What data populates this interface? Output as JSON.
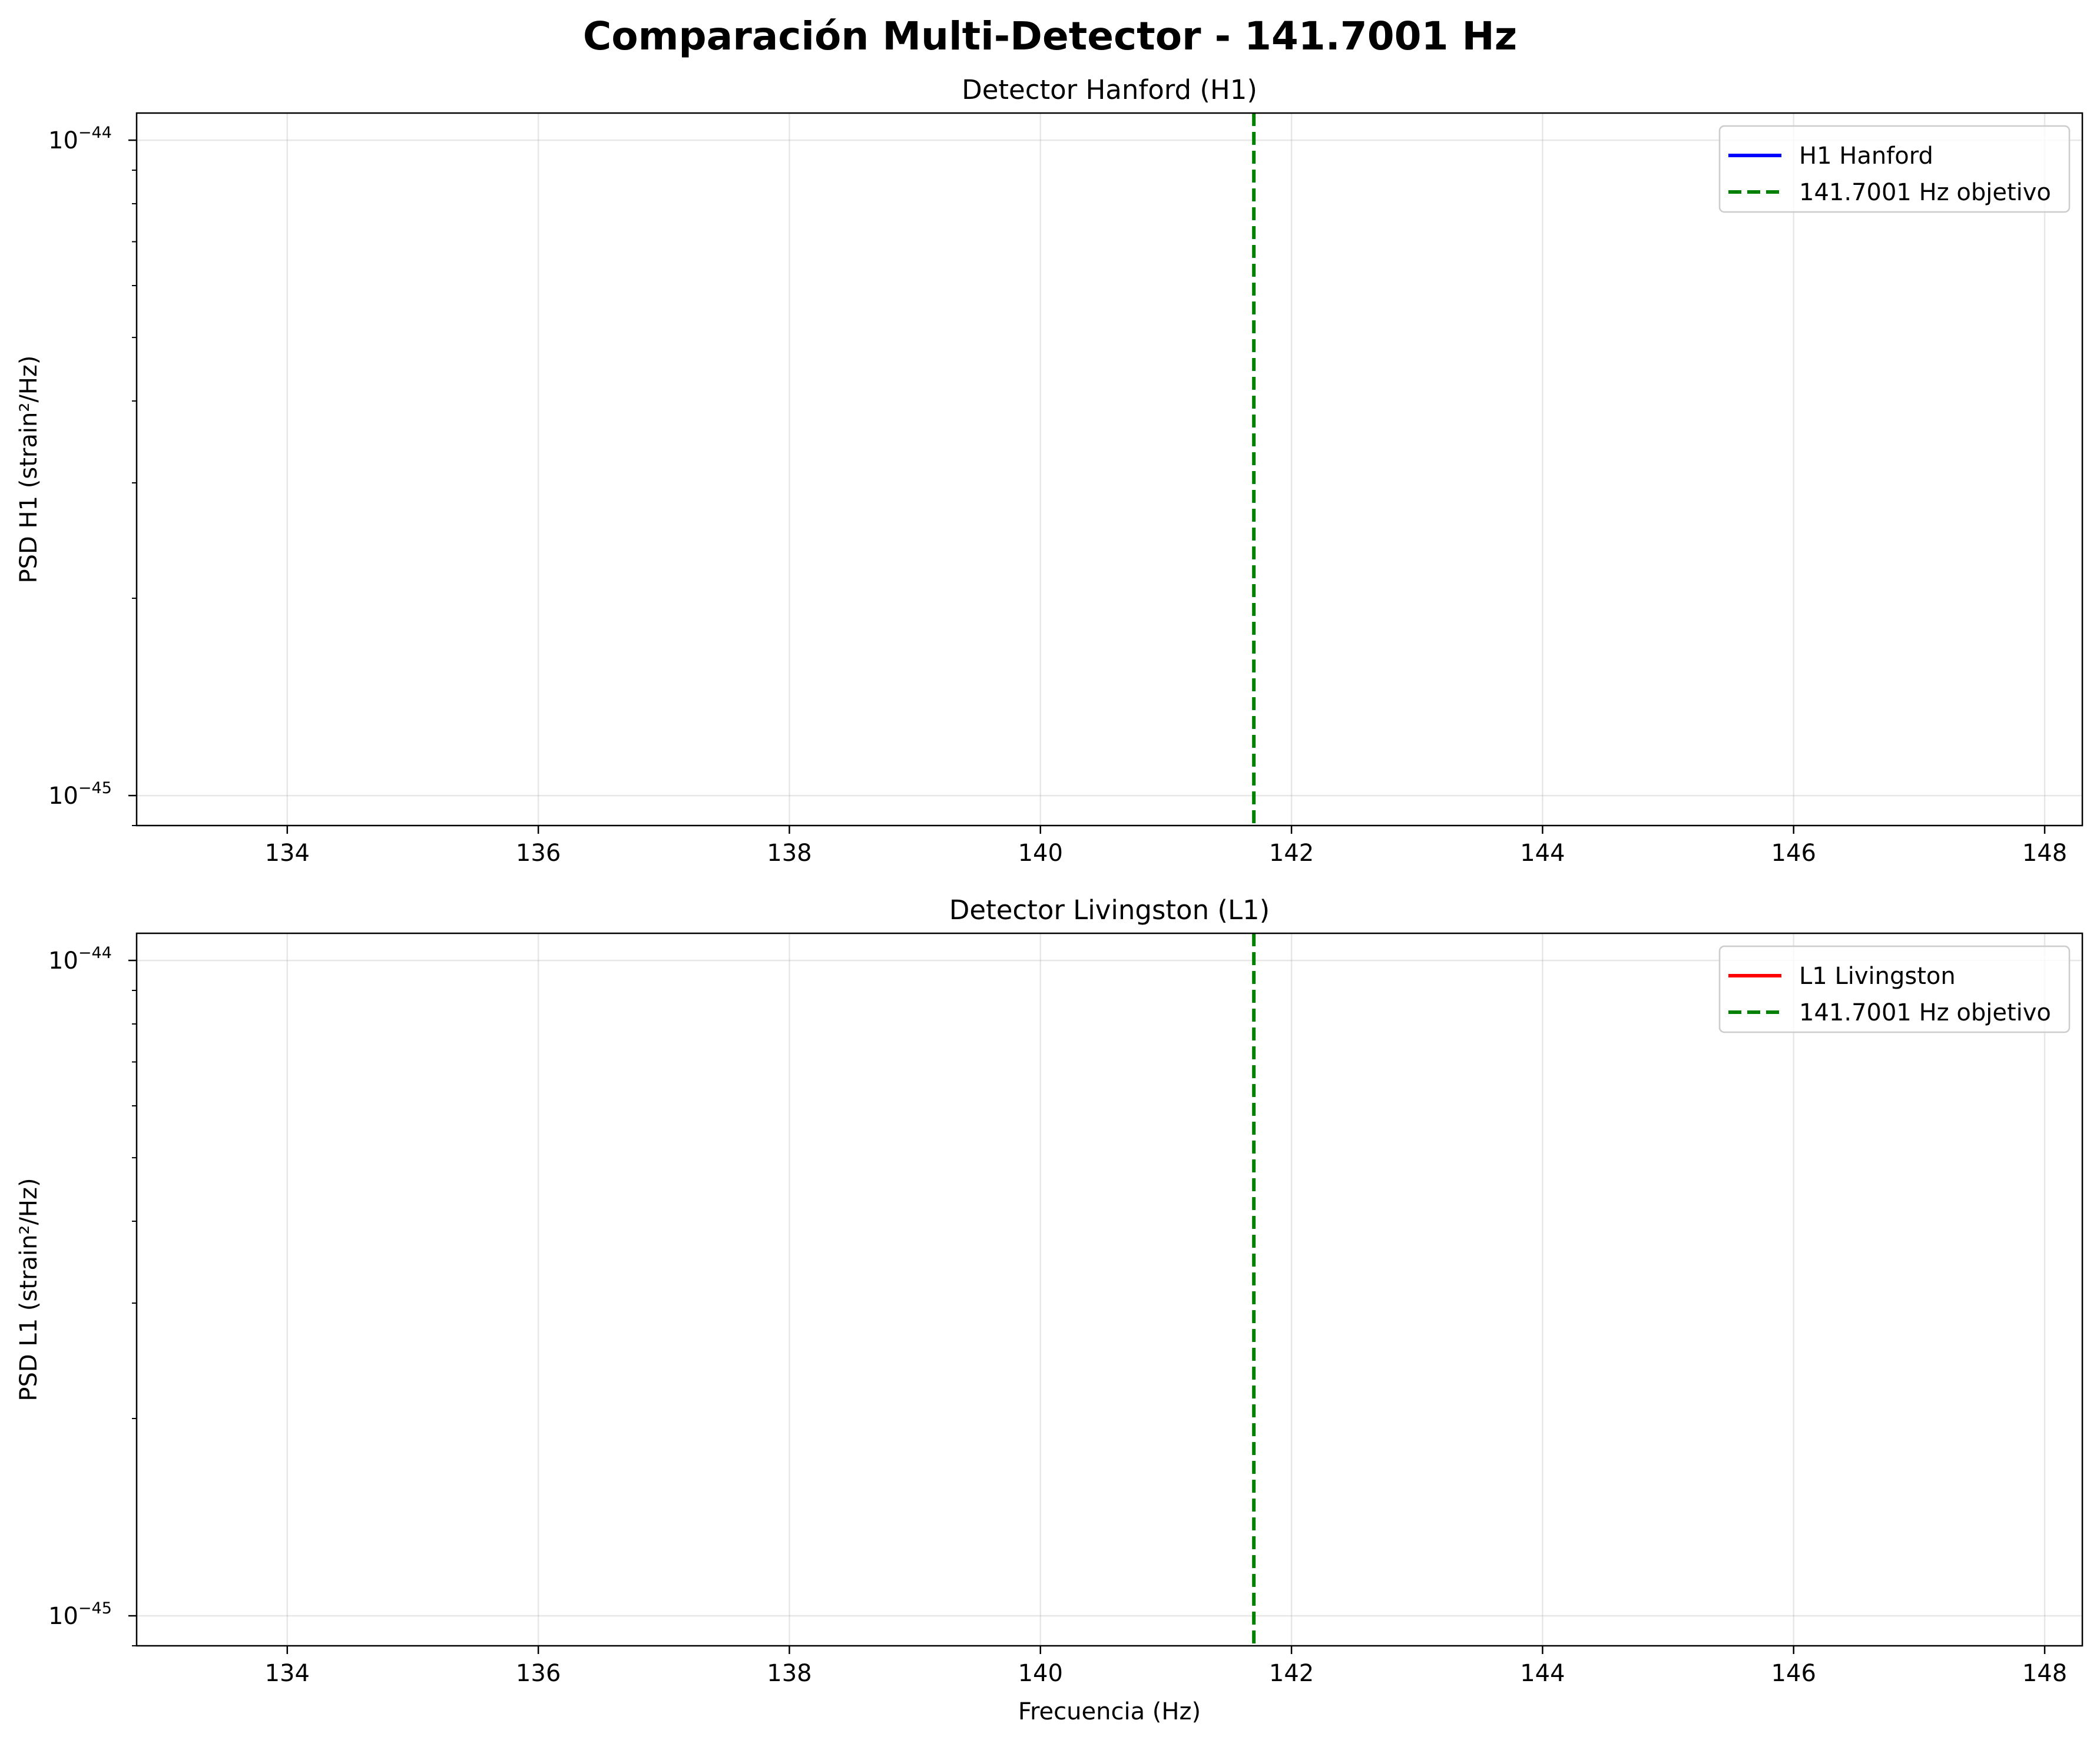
{
  "chart_data": {
    "title": "Comparación Multi-Detector - 141.7001 Hz",
    "xlabel": "Frecuencia (Hz)",
    "charts": [
      {
        "type": "line",
        "title": "Detector Hanford (H1)",
        "ylabel": "PSD H1 (strain²/Hz)",
        "yscale": "log",
        "xlim": [
          132.8,
          148.3
        ],
        "ylim": [
          9e-46,
          1.1e-44
        ],
        "xticks": [
          134,
          136,
          138,
          140,
          142,
          144,
          146,
          148
        ],
        "yticks": [
          {
            "base": "10",
            "exp": "−44",
            "value": 1e-44
          },
          {
            "base": "10",
            "exp": "−45",
            "value": 1e-45
          }
        ],
        "grid": true,
        "legend_position": "top-right",
        "series": [
          {
            "name": "H1 Hanford",
            "color": "#0000ff",
            "style": "solid",
            "x": [],
            "y": []
          },
          {
            "name": "141.7001 Hz objetivo",
            "color": "#008000",
            "style": "dashed",
            "type": "vline",
            "x": 141.7001
          }
        ]
      },
      {
        "type": "line",
        "title": "Detector Livingston (L1)",
        "ylabel": "PSD L1 (strain²/Hz)",
        "yscale": "log",
        "xlim": [
          132.8,
          148.3
        ],
        "ylim": [
          9e-46,
          1.1e-44
        ],
        "xticks": [
          134,
          136,
          138,
          140,
          142,
          144,
          146,
          148
        ],
        "yticks": [
          {
            "base": "10",
            "exp": "−44",
            "value": 1e-44
          },
          {
            "base": "10",
            "exp": "−45",
            "value": 1e-45
          }
        ],
        "grid": true,
        "legend_position": "top-right",
        "series": [
          {
            "name": "L1 Livingston",
            "color": "#ff0000",
            "style": "solid",
            "x": [],
            "y": []
          },
          {
            "name": "141.7001 Hz objetivo",
            "color": "#008000",
            "style": "dashed",
            "type": "vline",
            "x": 141.7001
          }
        ]
      }
    ]
  }
}
